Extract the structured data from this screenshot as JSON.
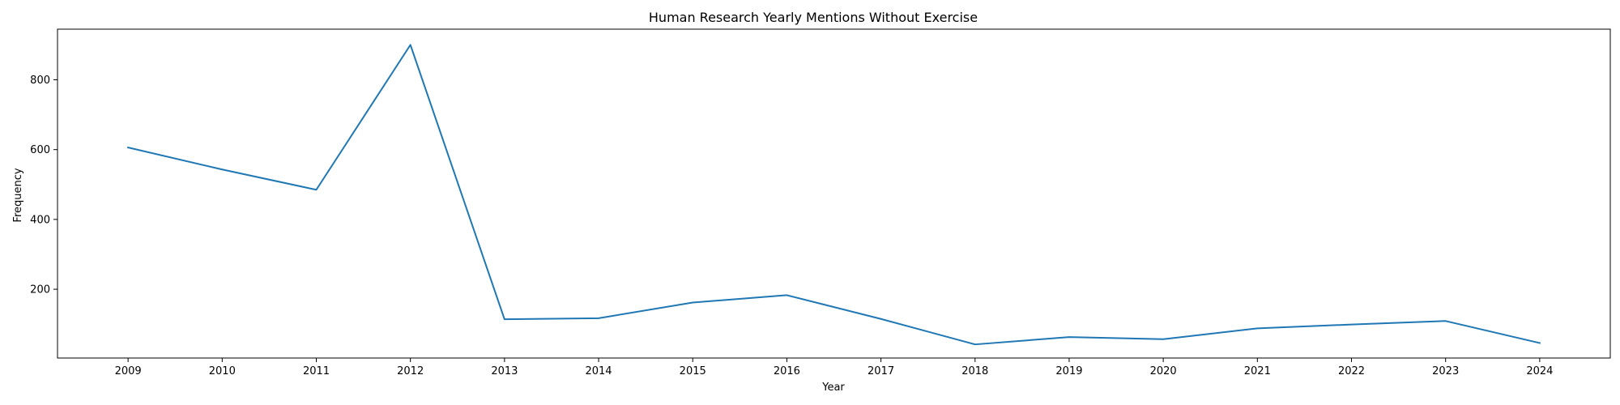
{
  "chart_data": {
    "type": "line",
    "title": "Human Research Yearly Mentions Without Exercise",
    "xlabel": "Year",
    "ylabel": "Frequency",
    "x": [
      2009,
      2010,
      2011,
      2012,
      2013,
      2014,
      2015,
      2016,
      2017,
      2018,
      2019,
      2020,
      2021,
      2022,
      2023,
      2024
    ],
    "series": [
      {
        "values": [
          606,
          543,
          485,
          900,
          114,
          117,
          162,
          183,
          115,
          42,
          63,
          57,
          88,
          99,
          109,
          46
        ],
        "color": "#1f77b4"
      }
    ],
    "xlim": [
      2008.25,
      2024.75
    ],
    "ylim": [
      3,
      945
    ],
    "yticks": [
      200,
      400,
      600,
      800
    ],
    "grid": false,
    "legend": false
  }
}
